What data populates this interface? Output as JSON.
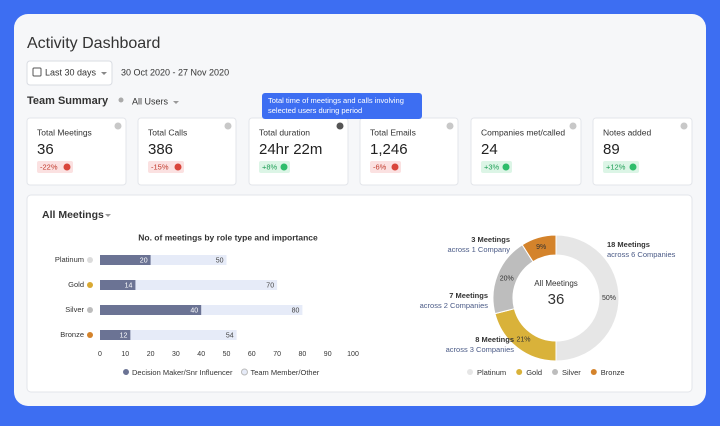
{
  "header": {
    "title": "Activity Dashboard",
    "filter": "Last 30 days",
    "date_range": "30 Oct 2020 - 27 Nov 2020"
  },
  "summary": {
    "title": "Team Summary",
    "user_filter": "All Users",
    "tooltip": [
      "Total time of meetings and calls involving",
      "selected users during period"
    ],
    "cards": [
      {
        "title": "Total Meetings",
        "value": "36",
        "change": "-22%",
        "trend": "down"
      },
      {
        "title": "Total Calls",
        "value": "386",
        "change": "-15%",
        "trend": "down"
      },
      {
        "title": "Total duration",
        "value": "24hr 22m",
        "change": "+8%",
        "trend": "up"
      },
      {
        "title": "Total Emails",
        "value": "1,246",
        "change": "-6%",
        "trend": "down"
      },
      {
        "title": "Companies met/called",
        "value": "24",
        "change": "+3%",
        "trend": "up"
      },
      {
        "title": "Notes added",
        "value": "89",
        "change": "+12%",
        "trend": "up"
      }
    ]
  },
  "meetings": {
    "title": "All Meetings",
    "bar_chart": {
      "type": "bar",
      "title": "No. of meetings by role type and importance",
      "categories": [
        "Platinum",
        "Gold",
        "Silver",
        "Bronze"
      ],
      "category_colors": [
        "#dcdcdc",
        "#d9a932",
        "#bdbdbd",
        "#d4832b"
      ],
      "series": [
        {
          "name": "Decision Maker/Snr Influencer",
          "color": "#6b7394",
          "values": [
            20,
            14,
            40,
            12
          ]
        },
        {
          "name": "Team Member/Other",
          "color": "#e6ebf8",
          "values": [
            50,
            70,
            80,
            54
          ]
        }
      ],
      "xlim": [
        0,
        100
      ],
      "xticks": [
        0,
        10,
        20,
        30,
        40,
        50,
        60,
        70,
        80,
        90,
        100
      ]
    },
    "donut_chart": {
      "type": "pie",
      "center_label": "All Meetings",
      "center_value": "36",
      "categories": [
        "Platinum",
        "Gold",
        "Silver",
        "Bronze"
      ],
      "values": [
        50,
        21,
        20,
        9
      ],
      "value_labels": [
        "50%",
        "21%",
        "20%",
        "9%"
      ],
      "colors": [
        "#e6e6e6",
        "#d9b23a",
        "#bdbdbd",
        "#d4832b"
      ],
      "annotations": [
        [
          "18 Meetings",
          "across 6 Companies"
        ],
        [
          "8 Meetings",
          "across 3 Companies"
        ],
        [
          "7 Meetings",
          "across 2 Companies"
        ],
        [
          "3 Meetings",
          "across 1 Company"
        ]
      ]
    }
  }
}
